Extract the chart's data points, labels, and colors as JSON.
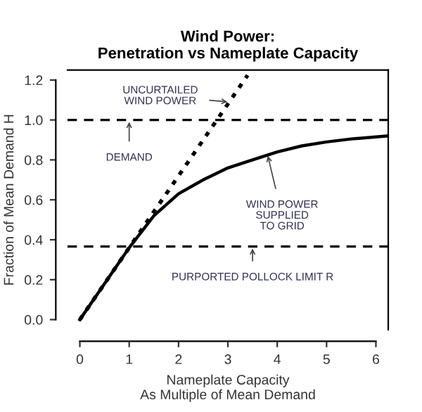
{
  "chart_data": {
    "type": "line",
    "title": "Wind Power:\nPenetration vs Nameplate Capacity",
    "xlabel": "Nameplate Capacity\nAs Multiple of Mean Demand",
    "ylabel": "Fraction of Mean Demand H",
    "xlim": [
      -0.25,
      6.25
    ],
    "ylim": [
      -0.05,
      1.25
    ],
    "xticks": [
      0,
      1,
      2,
      3,
      4,
      5,
      6
    ],
    "yticks": [
      {
        "value": 0,
        "label": "0.0"
      },
      0.2,
      0.4,
      0.6,
      0.8,
      {
        "value": 1,
        "label": "1.0"
      },
      1.2
    ],
    "grid": false,
    "legend": false,
    "series": [
      {
        "color": "#000000",
        "line_style": "dotted",
        "x": [
          0,
          3.4
        ],
        "values": [
          0,
          1.224
        ]
      },
      {
        "color": "#000000",
        "line_style": "solid",
        "x": [
          0,
          0.5,
          1,
          1.5,
          2,
          2.5,
          3,
          3.5,
          4,
          4.5,
          5,
          5.5,
          6.25
        ],
        "values": [
          0,
          0.18,
          0.36,
          0.52,
          0.63,
          0.7,
          0.76,
          0.8,
          0.84,
          0.87,
          0.89,
          0.905,
          0.92
        ]
      }
    ],
    "ref_lines": [
      {
        "axis": "y",
        "value": 1.0,
        "color": "#000000",
        "line_style": "dashed"
      },
      {
        "axis": "y",
        "value": 0.366,
        "color": "#000000",
        "line_style": "dashed"
      }
    ],
    "annotations": [
      {
        "text": "UNCURTAILED\nWIND POWER",
        "x": 3.03,
        "y": 1.09
      },
      {
        "text": "DEMAND",
        "x": 1.0,
        "y": 1.0
      },
      {
        "text": "WIND POWER\nSUPPLIED\nTO GRID",
        "x": 3.8,
        "y": 0.83
      },
      {
        "text": "PURPORTED POLLOCK LIMIT R",
        "x": 3.5,
        "y": 0.366
      }
    ]
  }
}
